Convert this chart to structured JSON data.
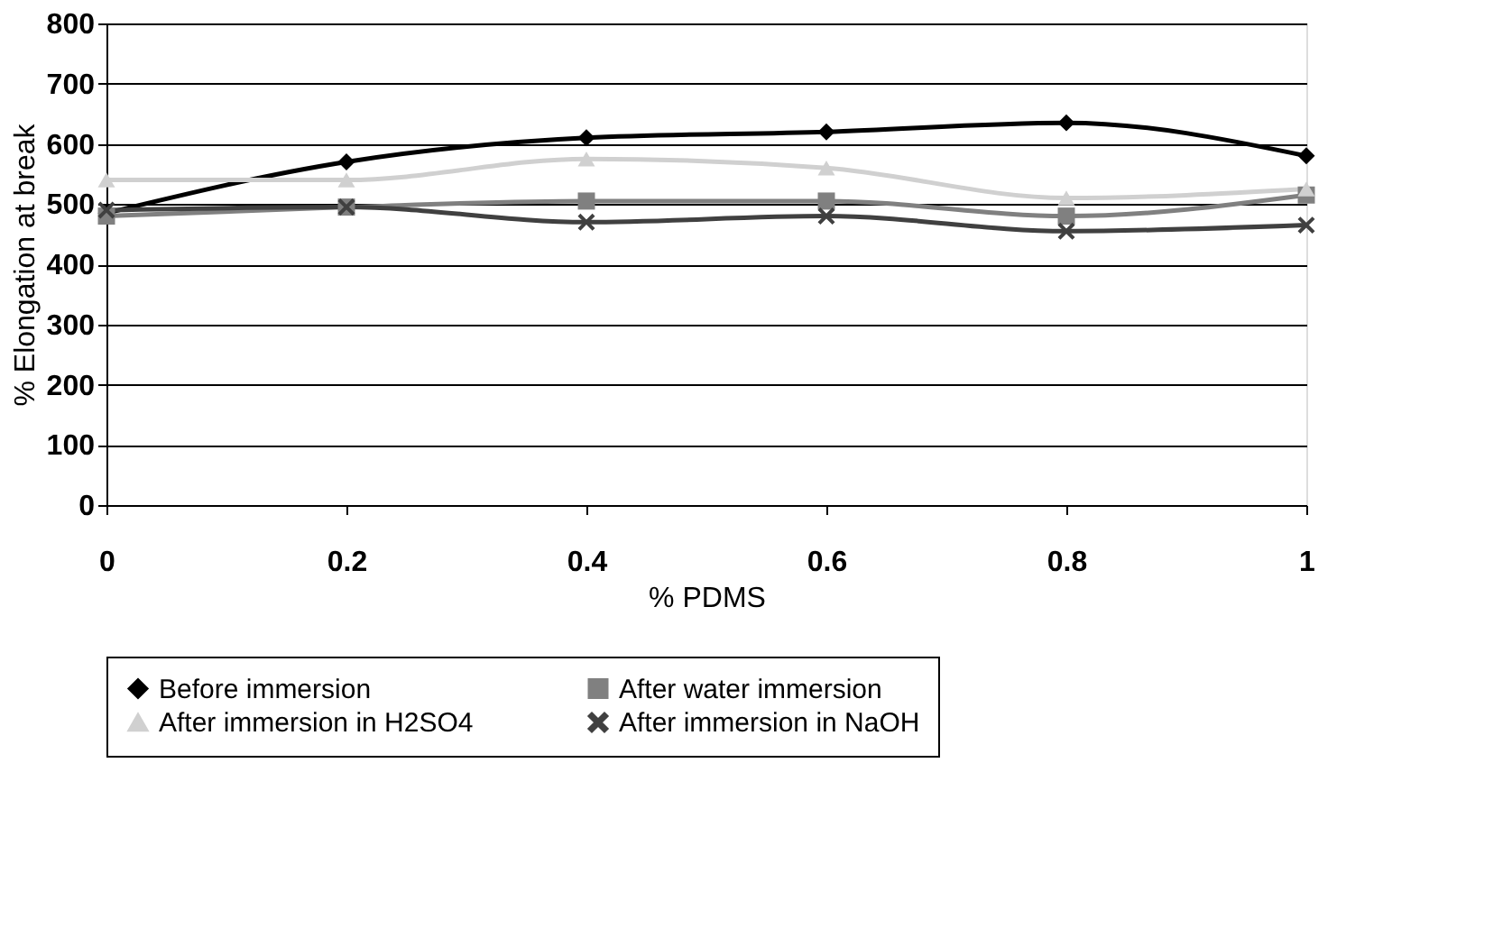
{
  "chart_data": {
    "type": "line",
    "xlabel": "% PDMS",
    "ylabel": "% Elongation at break",
    "x": [
      0,
      0.2,
      0.4,
      0.6,
      0.8,
      1
    ],
    "xlim": [
      0,
      1
    ],
    "xticks": [
      0,
      0.2,
      0.4,
      0.6,
      0.8,
      1
    ],
    "ylim": [
      0,
      800
    ],
    "yticks": [
      0,
      100,
      200,
      300,
      400,
      500,
      600,
      700,
      800
    ],
    "grid": "y",
    "legend": "bottom",
    "series": [
      {
        "name": "Before immersion",
        "color": "#000000",
        "marker": "diamond",
        "values": [
          485,
          570,
          610,
          620,
          635,
          580
        ]
      },
      {
        "name": "After water immersion",
        "color": "#808080",
        "marker": "square",
        "values": [
          480,
          495,
          505,
          505,
          480,
          515
        ]
      },
      {
        "name": "After immersion in H2SO4",
        "color": "#d0d0d0",
        "marker": "triangle",
        "values": [
          540,
          540,
          575,
          560,
          510,
          525
        ]
      },
      {
        "name": "After immersion in NaOH",
        "color": "#404040",
        "marker": "cross",
        "values": [
          490,
          495,
          470,
          480,
          455,
          465
        ]
      }
    ]
  }
}
